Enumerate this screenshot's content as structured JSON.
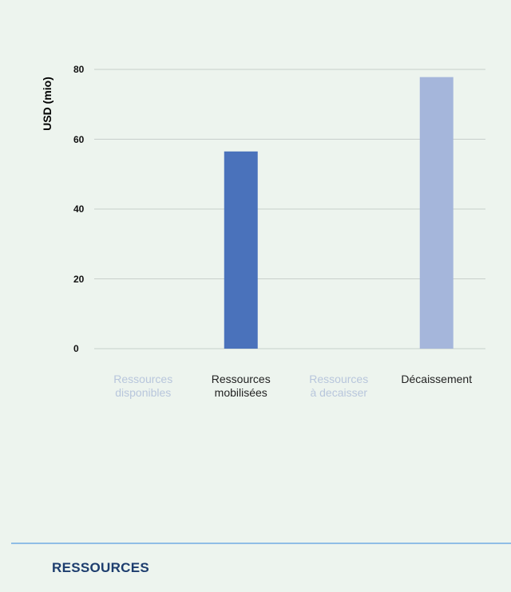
{
  "chart_data": {
    "type": "bar",
    "ylabel": "USD (mio)",
    "xlabel": "",
    "ylim": [
      0,
      80
    ],
    "yticks": [
      0,
      20,
      40,
      60,
      80
    ],
    "grid": true,
    "categories": [
      {
        "label": "Ressources\ndisponibles",
        "value": 0,
        "color": "#c5d3ea",
        "label_color": "#b8c6dc"
      },
      {
        "label": "Ressources\nmobilisées",
        "value": 56.5,
        "color": "#4a72bb",
        "label_color": "#222222"
      },
      {
        "label": "Ressources\nà decaisser",
        "value": 0,
        "color": "#c5d3ea",
        "label_color": "#b8c6dc"
      },
      {
        "label": "Décaissement",
        "value": 77.8,
        "color": "#a5b6db",
        "label_color": "#222222"
      }
    ]
  },
  "footer": {
    "section_title": "RESSOURCES"
  }
}
